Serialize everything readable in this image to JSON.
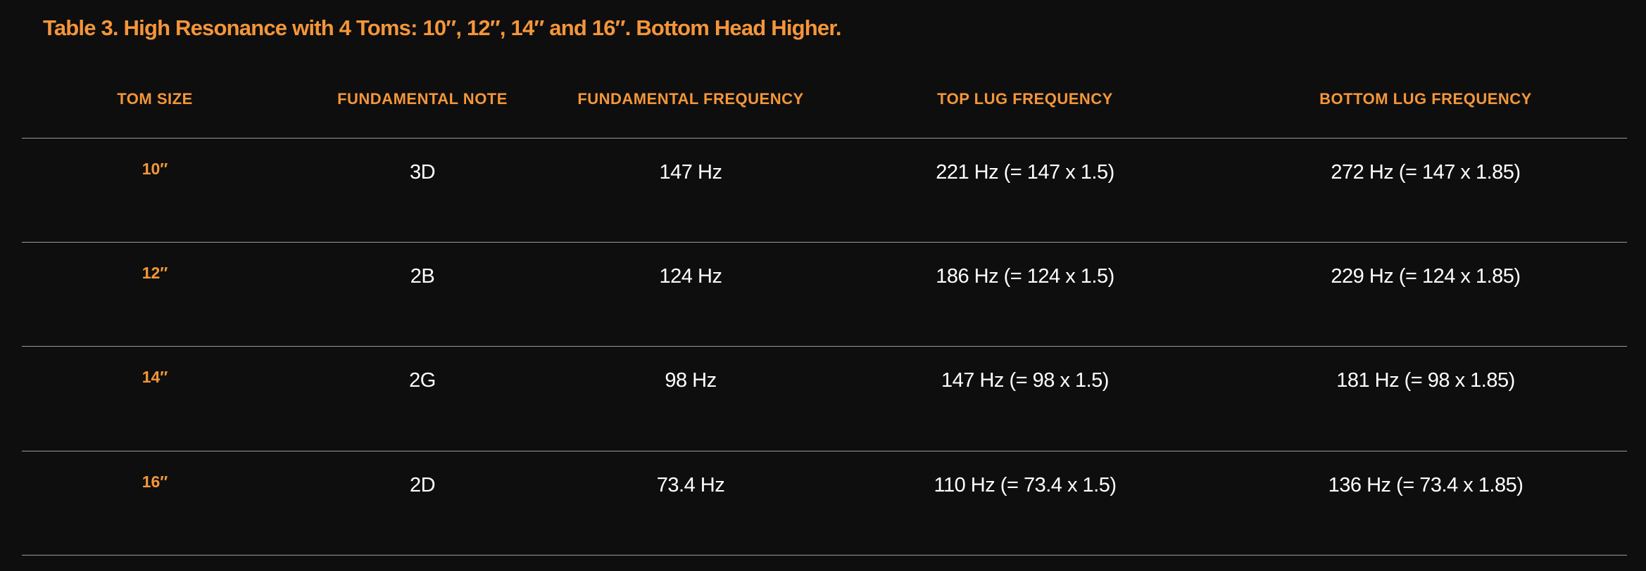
{
  "title": "Table 3. High Resonance with 4 Toms: 10″, 12″, 14″ and 16″. Bottom Head Higher.",
  "columns": [
    "TOM SIZE",
    "FUNDAMENTAL NOTE",
    "FUNDAMENTAL FREQUENCY",
    "TOP LUG FREQUENCY",
    "BOTTOM LUG FREQUENCY"
  ],
  "rows": [
    {
      "size": "10″",
      "note": "3D",
      "freq": "147 Hz",
      "top": "221 Hz (= 147 x 1.5)",
      "bottom": "272 Hz (= 147 x 1.85)"
    },
    {
      "size": "12″",
      "note": "2B",
      "freq": "124 Hz",
      "top": "186 Hz (= 124 x 1.5)",
      "bottom": "229 Hz (= 124 x 1.85)"
    },
    {
      "size": "14″",
      "note": "2G",
      "freq": "98 Hz",
      "top": "147 Hz (= 98 x 1.5)",
      "bottom": "181 Hz (= 98 x 1.85)"
    },
    {
      "size": "16″",
      "note": "2D",
      "freq": "73.4 Hz",
      "top": "110 Hz (= 73.4 x 1.5)",
      "bottom": "136 Hz (= 73.4 x 1.85)"
    }
  ],
  "colors": {
    "background": "#0e0e0e",
    "accent": "#f4963a",
    "text": "#ffffff",
    "rule": "#9a9a9a"
  }
}
